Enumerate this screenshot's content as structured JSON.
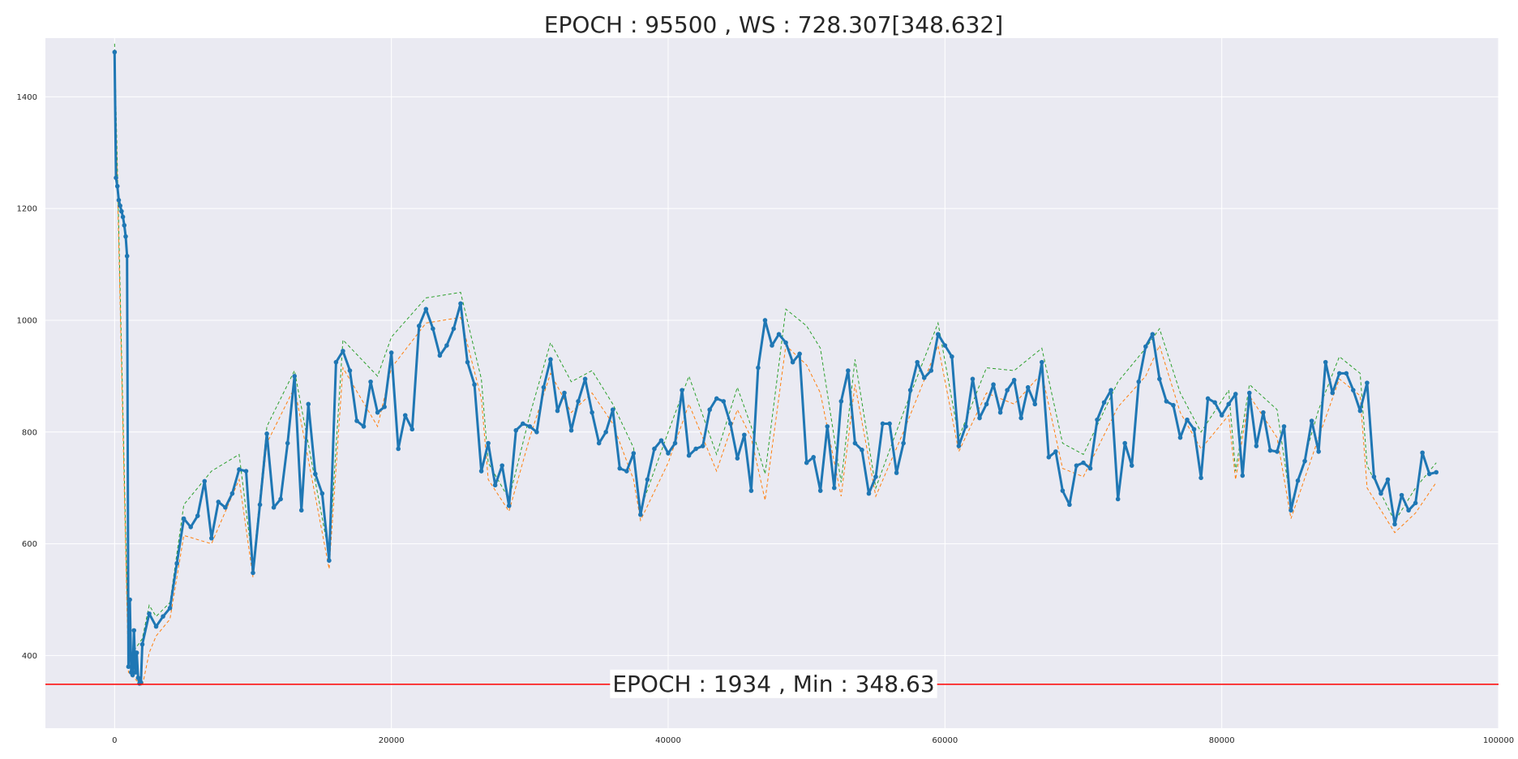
{
  "chart_data": {
    "type": "line",
    "title": "EPOCH : 95500 , WS : 728.307[348.632]",
    "xlabel": "",
    "ylabel": "",
    "xlim": [
      -5000,
      100000
    ],
    "ylim": [
      270,
      1505
    ],
    "xticks": [
      0,
      20000,
      40000,
      60000,
      80000,
      100000
    ],
    "yticks": [
      400,
      600,
      800,
      1000,
      1200,
      1400
    ],
    "grid": true,
    "min_line": {
      "y": 348.63,
      "label": "EPOCH : 1934 , Min : 348.63",
      "color": "#ff0000"
    },
    "colors": {
      "main": "#1f77b4",
      "upper": "#2ca02c",
      "lower": "#ff7f0e",
      "background": "#eaeaf2",
      "grid": "#ffffff"
    },
    "series": [
      {
        "style": "solid",
        "x": [
          0,
          100,
          200,
          300,
          400,
          500,
          600,
          700,
          800,
          900,
          1000,
          1100,
          1200,
          1300,
          1400,
          1500,
          1600,
          1700,
          1800,
          1900,
          2000,
          2500,
          3000,
          3500,
          4000,
          4500,
          5000,
          5500,
          6000,
          6500,
          7000,
          7500,
          8000,
          8500,
          9000,
          9500,
          10000,
          10500,
          11000,
          11500,
          12000,
          12500,
          13000,
          13500,
          14000,
          14500,
          15000,
          15500,
          16000,
          16500,
          17000,
          17500,
          18000,
          18500,
          19000,
          19500,
          20000,
          20500,
          21000,
          21500,
          22000,
          22500,
          23000,
          23500,
          24000,
          24500,
          25000,
          25500,
          26000,
          26500,
          27000,
          27500,
          28000,
          28500,
          29000,
          29500,
          30000,
          30500,
          31000,
          31500,
          32000,
          32500,
          33000,
          33500,
          34000,
          34500,
          35000,
          35500,
          36000,
          36500,
          37000,
          37500,
          38000,
          38500,
          39000,
          39500,
          40000,
          40500,
          41000,
          41500,
          42000,
          42500,
          43000,
          43500,
          44000,
          44500,
          45000,
          45500,
          46000,
          46500,
          47000,
          47500,
          48000,
          48500,
          49000,
          49500,
          50000,
          50500,
          51000,
          51500,
          52000,
          52500,
          53000,
          53500,
          54000,
          54500,
          55000,
          55500,
          56000,
          56500,
          57000,
          57500,
          58000,
          58500,
          59000,
          59500,
          60000,
          60500,
          61000,
          61500,
          62000,
          62500,
          63000,
          63500,
          64000,
          64500,
          65000,
          65500,
          66000,
          66500,
          67000,
          67500,
          68000,
          68500,
          69000,
          69500,
          70000,
          70500,
          71000,
          71500,
          72000,
          72500,
          73000,
          73500,
          74000,
          74500,
          75000,
          75500,
          76000,
          76500,
          77000,
          77500,
          78000,
          78500,
          79000,
          79500,
          80000,
          80500,
          81000,
          81500,
          82000,
          82500,
          83000,
          83500,
          84000,
          84500,
          85000,
          85500,
          86000,
          86500,
          87000,
          87500,
          88000,
          88500,
          89000,
          89500,
          90000,
          90500,
          91000,
          91500,
          92000,
          92500,
          93000,
          93500,
          94000,
          94500,
          95000,
          95500
        ],
        "y": [
          1480,
          1255,
          1240,
          1215,
          1205,
          1195,
          1185,
          1170,
          1150,
          1115,
          380,
          500,
          370,
          365,
          445,
          370,
          405,
          360,
          350,
          352,
          420,
          475,
          452,
          470,
          485,
          565,
          645,
          630,
          650,
          712,
          610,
          675,
          665,
          690,
          733,
          730,
          548,
          670,
          797,
          665,
          680,
          780,
          900,
          660,
          850,
          725,
          690,
          570,
          925,
          945,
          910,
          820,
          810,
          890,
          835,
          845,
          942,
          770,
          830,
          805,
          990,
          1020,
          985,
          937,
          955,
          985,
          1030,
          925,
          885,
          730,
          780,
          705,
          740,
          668,
          803,
          815,
          810,
          800,
          880,
          930,
          838,
          870,
          803,
          855,
          895,
          835,
          780,
          800,
          840,
          735,
          730,
          762,
          652,
          715,
          770,
          785,
          762,
          780,
          875,
          758,
          770,
          775,
          840,
          860,
          855,
          815,
          753,
          795,
          695,
          915,
          1000,
          955,
          975,
          960,
          925,
          940,
          745,
          755,
          695,
          810,
          700,
          855,
          910,
          780,
          768,
          690,
          720,
          815,
          815,
          727,
          780,
          875,
          925,
          897,
          910,
          975,
          955,
          935,
          775,
          810,
          895,
          825,
          850,
          885,
          835,
          875,
          893,
          825,
          880,
          850,
          925,
          755,
          765,
          695,
          670,
          740,
          745,
          735,
          822,
          853,
          875,
          680,
          780,
          740,
          890,
          953,
          975,
          895,
          855,
          848,
          790,
          822,
          805,
          718,
          860,
          853,
          830,
          850,
          868,
          722,
          870,
          775,
          835,
          767,
          765,
          810,
          660,
          713,
          748,
          820,
          765,
          925,
          870,
          905,
          905,
          875,
          838,
          888,
          720,
          690,
          715,
          635,
          687,
          660,
          673,
          763,
          725,
          728
        ]
      },
      {
        "style": "dashed-upper",
        "x": [
          0,
          1000,
          2000,
          2500,
          3000,
          4000,
          5000,
          7000,
          9000,
          10000,
          11000,
          13000,
          15500,
          16500,
          19000,
          20000,
          22500,
          25000,
          26500,
          27000,
          28500,
          30000,
          31500,
          33000,
          34500,
          36000,
          37500,
          38000,
          40000,
          41500,
          43500,
          45000,
          46000,
          47000,
          48500,
          50000,
          51000,
          52500,
          53500,
          55000,
          57000,
          59500,
          61000,
          63000,
          65000,
          67000,
          68500,
          70000,
          72500,
          74500,
          75500,
          77000,
          78500,
          80500,
          81000,
          82000,
          84000,
          85000,
          87000,
          88500,
          90000,
          90500,
          92500,
          94000,
          95500
        ],
        "y": [
          1495,
          395,
          430,
          490,
          470,
          495,
          670,
          730,
          760,
          560,
          810,
          910,
          580,
          965,
          900,
          970,
          1040,
          1050,
          895,
          745,
          680,
          830,
          960,
          890,
          910,
          850,
          772,
          662,
          800,
          900,
          760,
          880,
          810,
          725,
          1020,
          990,
          950,
          710,
          930,
          700,
          835,
          995,
          790,
          915,
          910,
          950,
          780,
          760,
          890,
          950,
          985,
          870,
          800,
          875,
          730,
          885,
          840,
          670,
          840,
          935,
          905,
          740,
          640,
          700,
          745
        ]
      },
      {
        "style": "dashed-lower",
        "x": [
          0,
          1000,
          2000,
          2500,
          3000,
          4000,
          5000,
          7000,
          9000,
          10000,
          11000,
          13000,
          15500,
          16500,
          19000,
          20000,
          22500,
          25000,
          26500,
          27000,
          28500,
          30000,
          31500,
          33000,
          34500,
          36000,
          37500,
          38000,
          40000,
          41500,
          43500,
          45000,
          46000,
          47000,
          48500,
          50000,
          51000,
          52500,
          53500,
          55000,
          57000,
          59500,
          61000,
          63000,
          65000,
          67000,
          68500,
          70000,
          72500,
          74500,
          75500,
          77000,
          78500,
          80500,
          81000,
          82000,
          84000,
          85000,
          87000,
          88500,
          90000,
          90500,
          92500,
          94000,
          95500
        ],
        "y": [
          1470,
          370,
          345,
          405,
          435,
          465,
          615,
          600,
          715,
          540,
          780,
          880,
          555,
          915,
          810,
          915,
          995,
          1005,
          860,
          715,
          658,
          790,
          905,
          835,
          870,
          815,
          715,
          642,
          745,
          850,
          730,
          840,
          790,
          678,
          955,
          920,
          870,
          685,
          885,
          685,
          800,
          955,
          765,
          870,
          850,
          905,
          735,
          720,
          845,
          900,
          955,
          835,
          770,
          830,
          715,
          865,
          790,
          645,
          790,
          895,
          865,
          700,
          620,
          655,
          710
        ]
      }
    ]
  }
}
